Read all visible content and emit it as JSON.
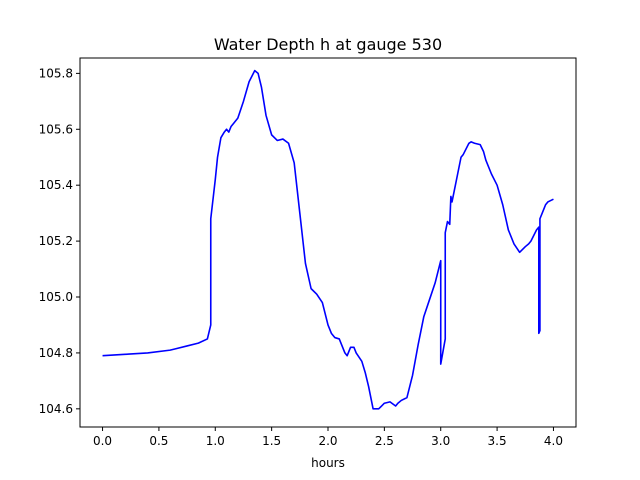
{
  "chart_data": {
    "type": "line",
    "title": "Water Depth h at gauge 530",
    "xlabel": "hours",
    "ylabel": "",
    "xlim": [
      -0.2,
      4.2
    ],
    "ylim": [
      104.535,
      105.855
    ],
    "xticks": [
      0.0,
      0.5,
      1.0,
      1.5,
      2.0,
      2.5,
      3.0,
      3.5,
      4.0
    ],
    "xtick_labels": [
      "0.0",
      "0.5",
      "1.0",
      "1.5",
      "2.0",
      "2.5",
      "3.0",
      "3.5",
      "4.0"
    ],
    "yticks": [
      104.6,
      104.8,
      105.0,
      105.2,
      105.4,
      105.6,
      105.8
    ],
    "ytick_labels": [
      "104.6",
      "104.8",
      "105.0",
      "105.2",
      "105.4",
      "105.6",
      "105.8"
    ],
    "grid": false,
    "line_color": "#0000ff",
    "series": [
      {
        "x": [
          0.0,
          0.2,
          0.4,
          0.6,
          0.65,
          0.75,
          0.85,
          0.93,
          0.96,
          0.96,
          0.98,
          1.0,
          1.02,
          1.05,
          1.08,
          1.1,
          1.12,
          1.14,
          1.16,
          1.2,
          1.25,
          1.3,
          1.35,
          1.38,
          1.41,
          1.45,
          1.5,
          1.55,
          1.6,
          1.65,
          1.7,
          1.75,
          1.8,
          1.85,
          1.9,
          1.95,
          2.0,
          2.03,
          2.06,
          2.1,
          2.12,
          2.15,
          2.17,
          2.2,
          2.23,
          2.25,
          2.3,
          2.33,
          2.36,
          2.4,
          2.45,
          2.5,
          2.55,
          2.6,
          2.62,
          2.65,
          2.7,
          2.75,
          2.8,
          2.85,
          2.9,
          2.95,
          3.0,
          3.0,
          3.04,
          3.04,
          3.06,
          3.08,
          3.09,
          3.1,
          3.12,
          3.15,
          3.18,
          3.2,
          3.25,
          3.27,
          3.3,
          3.35,
          3.38,
          3.4,
          3.45,
          3.5,
          3.55,
          3.6,
          3.65,
          3.7,
          3.75,
          3.78,
          3.8,
          3.85,
          3.87,
          3.87,
          3.88,
          3.88,
          3.9,
          3.92,
          3.93,
          3.95,
          4.0
        ],
        "y": [
          104.79,
          104.795,
          104.8,
          104.81,
          104.815,
          104.825,
          104.835,
          104.85,
          104.9,
          105.28,
          105.35,
          105.42,
          105.5,
          105.57,
          105.59,
          105.6,
          105.59,
          105.61,
          105.62,
          105.64,
          105.7,
          105.77,
          105.81,
          105.8,
          105.75,
          105.65,
          105.58,
          105.56,
          105.565,
          105.55,
          105.48,
          105.3,
          105.12,
          105.03,
          105.01,
          104.98,
          104.9,
          104.87,
          104.855,
          104.85,
          104.83,
          104.8,
          104.79,
          104.82,
          104.82,
          104.8,
          104.77,
          104.73,
          104.68,
          104.6,
          104.6,
          104.62,
          104.625,
          104.61,
          104.62,
          104.63,
          104.64,
          104.72,
          104.83,
          104.93,
          104.99,
          105.05,
          105.13,
          104.76,
          104.85,
          105.23,
          105.27,
          105.26,
          105.36,
          105.34,
          105.38,
          105.44,
          105.5,
          105.51,
          105.55,
          105.555,
          105.55,
          105.545,
          105.52,
          105.49,
          105.44,
          105.4,
          105.33,
          105.24,
          105.19,
          105.16,
          105.18,
          105.19,
          105.2,
          105.24,
          105.25,
          104.87,
          104.88,
          105.28,
          105.3,
          105.32,
          105.33,
          105.34,
          105.35
        ]
      }
    ]
  }
}
